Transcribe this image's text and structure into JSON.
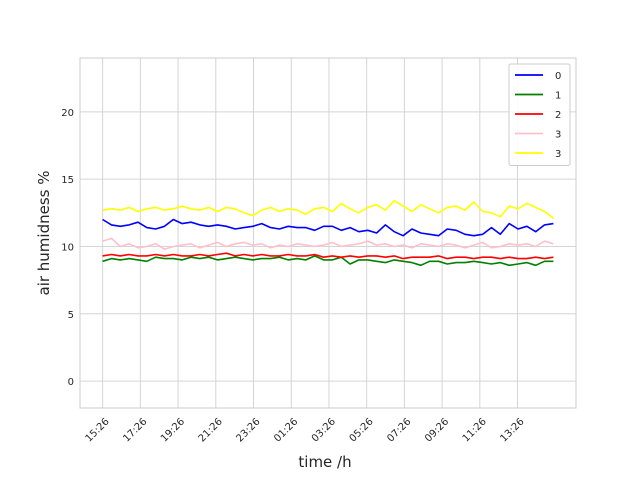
{
  "chart_data": {
    "type": "line",
    "title": "",
    "xlabel": "time /h",
    "ylabel": "air humidness  %",
    "ylim": [
      -2,
      24
    ],
    "yticks": [
      0,
      5,
      10,
      15,
      20
    ],
    "xticks": [
      "15:26",
      "17:26",
      "19:26",
      "21:26",
      "23:26",
      "01:26",
      "03:26",
      "05:26",
      "07:26",
      "09:26",
      "11:26",
      "13:26"
    ],
    "x_start_hours": 0,
    "x_end_hours": 23.9,
    "x_lim_hours": [
      -1.2,
      25.1
    ],
    "grid": true,
    "legend_position": "top-right",
    "series": [
      {
        "name": "0",
        "color": "#0000ff",
        "values": [
          12.0,
          11.6,
          11.5,
          11.6,
          11.8,
          11.4,
          11.3,
          11.5,
          12.0,
          11.7,
          11.8,
          11.6,
          11.5,
          11.6,
          11.5,
          11.3,
          11.4,
          11.5,
          11.7,
          11.4,
          11.3,
          11.5,
          11.4,
          11.4,
          11.2,
          11.5,
          11.5,
          11.2,
          11.4,
          11.1,
          11.2,
          11.0,
          11.6,
          11.1,
          10.8,
          11.3,
          11.0,
          10.9,
          10.8,
          11.3,
          11.2,
          10.9,
          10.8,
          10.9,
          11.4,
          10.9,
          11.7,
          11.3,
          11.5,
          11.1,
          11.6,
          11.7
        ]
      },
      {
        "name": "1",
        "color": "#008000",
        "values": [
          8.9,
          9.1,
          9.0,
          9.1,
          9.0,
          8.9,
          9.2,
          9.1,
          9.1,
          9.0,
          9.2,
          9.1,
          9.2,
          9.0,
          9.1,
          9.2,
          9.1,
          9.0,
          9.1,
          9.1,
          9.2,
          9.0,
          9.1,
          9.0,
          9.3,
          9.0,
          9.0,
          9.2,
          8.7,
          9.0,
          9.0,
          8.9,
          8.8,
          9.0,
          8.9,
          8.8,
          8.6,
          8.9,
          8.9,
          8.7,
          8.8,
          8.8,
          8.9,
          8.8,
          8.7,
          8.8,
          8.6,
          8.7,
          8.8,
          8.6,
          8.9,
          8.9
        ]
      },
      {
        "name": "2",
        "color": "#ff0000",
        "values": [
          9.3,
          9.4,
          9.3,
          9.4,
          9.3,
          9.3,
          9.4,
          9.3,
          9.4,
          9.3,
          9.3,
          9.4,
          9.3,
          9.4,
          9.5,
          9.3,
          9.4,
          9.3,
          9.4,
          9.3,
          9.3,
          9.4,
          9.3,
          9.3,
          9.4,
          9.2,
          9.3,
          9.2,
          9.3,
          9.2,
          9.3,
          9.3,
          9.2,
          9.3,
          9.1,
          9.2,
          9.2,
          9.2,
          9.3,
          9.1,
          9.2,
          9.2,
          9.1,
          9.2,
          9.2,
          9.1,
          9.2,
          9.1,
          9.1,
          9.2,
          9.1,
          9.2
        ]
      },
      {
        "name": "3",
        "color": "#ffc0cb",
        "values": [
          10.4,
          10.6,
          10.0,
          10.2,
          9.9,
          10.0,
          10.2,
          9.8,
          10.0,
          10.1,
          10.2,
          9.9,
          10.1,
          10.3,
          10.0,
          10.2,
          10.3,
          10.1,
          10.2,
          9.9,
          10.1,
          10.0,
          10.2,
          10.1,
          10.0,
          10.1,
          10.3,
          10.0,
          10.1,
          10.2,
          10.4,
          10.1,
          10.2,
          10.0,
          10.1,
          9.9,
          10.2,
          10.1,
          10.0,
          10.2,
          10.1,
          9.9,
          10.1,
          10.3,
          9.9,
          10.0,
          10.2,
          10.1,
          10.2,
          10.0,
          10.4,
          10.2
        ]
      },
      {
        "name": "3",
        "color": "#ffff00",
        "values": [
          12.7,
          12.8,
          12.7,
          12.9,
          12.6,
          12.8,
          12.9,
          12.7,
          12.8,
          13.0,
          12.8,
          12.7,
          12.9,
          12.6,
          12.9,
          12.8,
          12.5,
          12.3,
          12.7,
          12.9,
          12.6,
          12.8,
          12.7,
          12.4,
          12.8,
          12.9,
          12.6,
          13.2,
          12.8,
          12.5,
          12.9,
          13.1,
          12.7,
          13.4,
          13.0,
          12.6,
          13.1,
          12.8,
          12.5,
          12.9,
          13.0,
          12.7,
          13.3,
          12.6,
          12.5,
          12.2,
          13.0,
          12.8,
          13.2,
          12.9,
          12.6,
          12.1
        ]
      }
    ]
  }
}
